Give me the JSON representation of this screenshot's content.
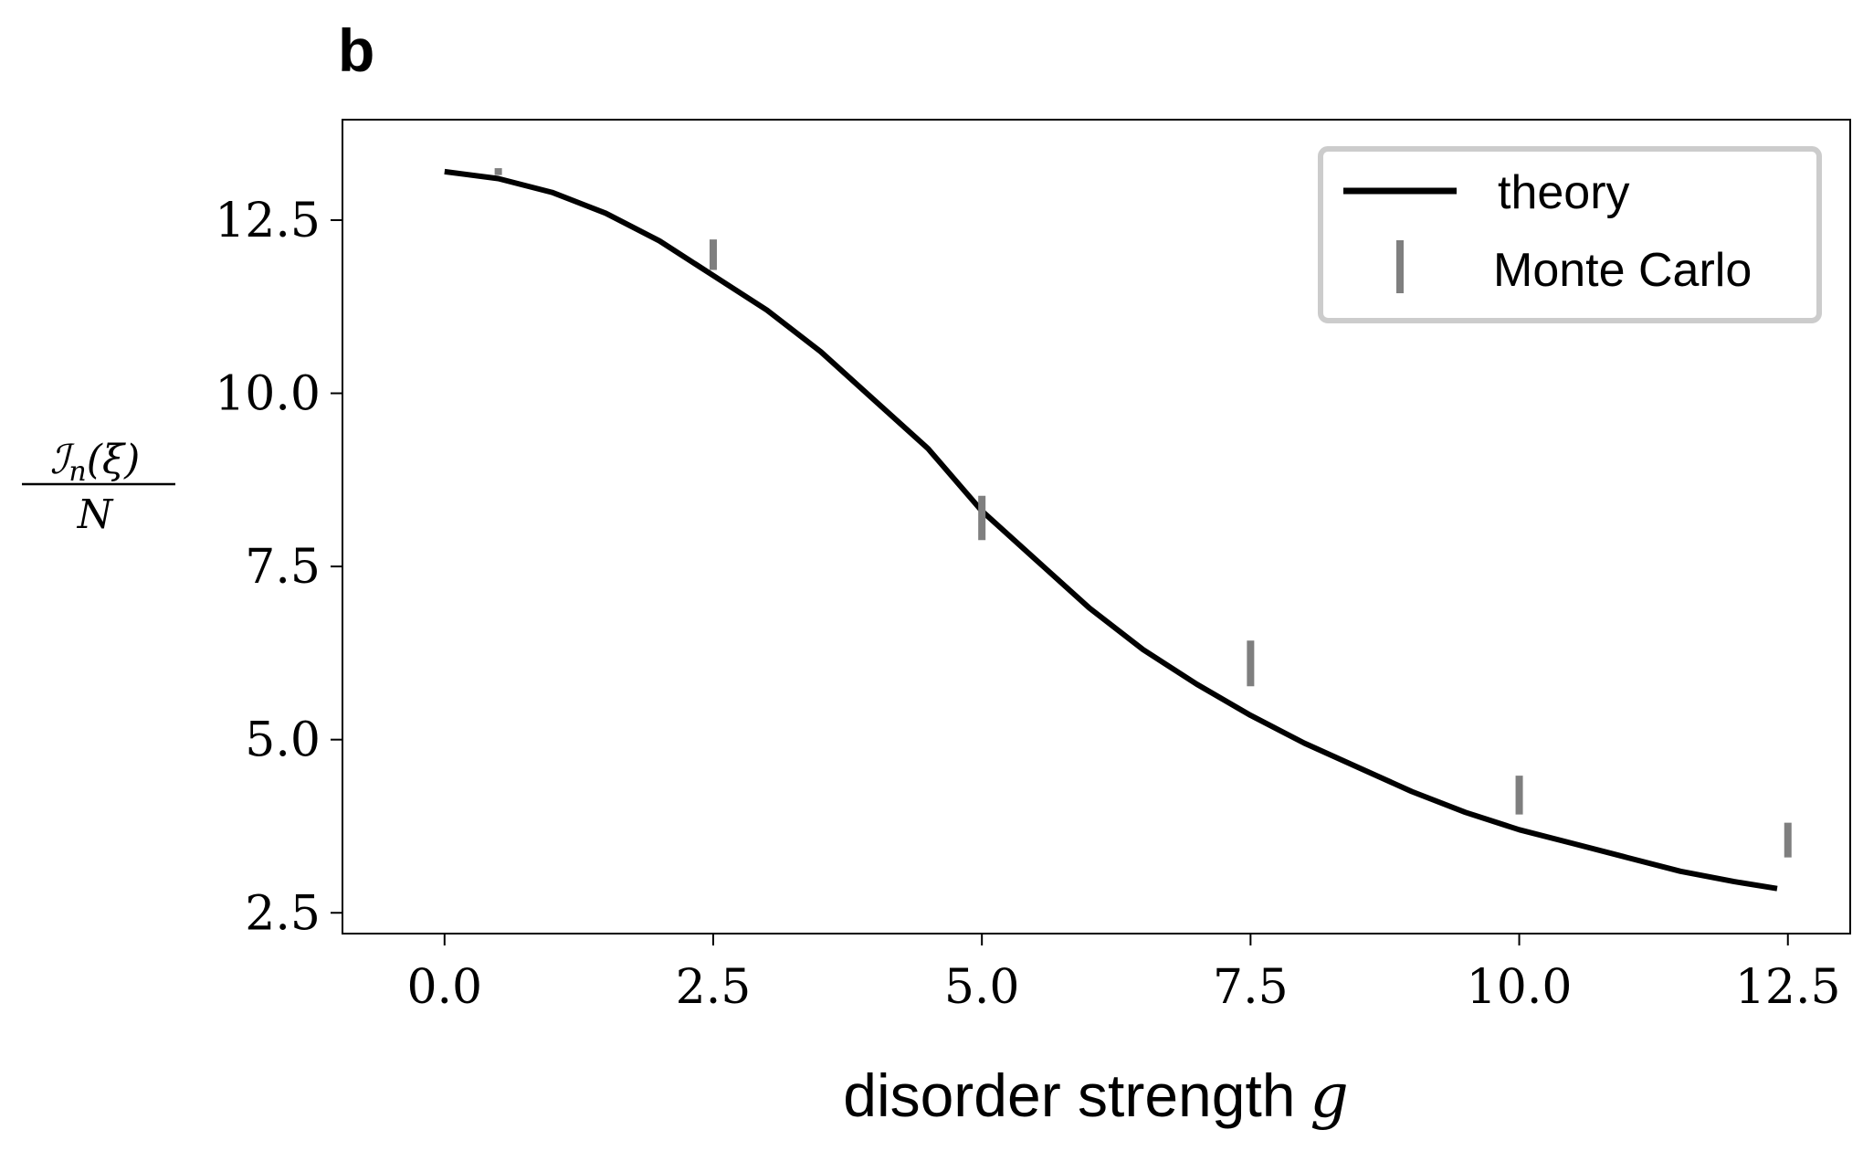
{
  "panel_label": "b",
  "chart_data": {
    "type": "line",
    "title": "",
    "xlabel": "disorder strength",
    "xlabel_symbol": "g",
    "ylabel_numerator": "ℐn(ξ)",
    "ylabel_numerator_main": "ℐ",
    "ylabel_numerator_sub": "n",
    "ylabel_numerator_arg": "(ξ)",
    "ylabel_denominator": "N",
    "xlim": [
      -0.95,
      13.08
    ],
    "ylim": [
      2.2,
      13.95
    ],
    "xticks": [
      0.0,
      2.5,
      5.0,
      7.5,
      10.0,
      12.5
    ],
    "xtick_labels": [
      "0.0",
      "2.5",
      "5.0",
      "7.5",
      "10.0",
      "12.5"
    ],
    "yticks": [
      2.5,
      5.0,
      7.5,
      10.0,
      12.5
    ],
    "ytick_labels": [
      "2.5",
      "5.0",
      "7.5",
      "10.0",
      "12.5"
    ],
    "grid": false,
    "legend_position": "top-right",
    "series": [
      {
        "name": "theory",
        "kind": "line",
        "color": "#000000",
        "x": [
          0.0,
          0.5,
          1.0,
          1.5,
          2.0,
          2.5,
          3.0,
          3.5,
          4.0,
          4.5,
          5.0,
          5.5,
          6.0,
          6.5,
          7.0,
          7.5,
          8.0,
          8.5,
          9.0,
          9.5,
          10.0,
          10.5,
          11.0,
          11.5,
          12.0,
          12.4
        ],
        "y": [
          13.2,
          13.1,
          12.9,
          12.6,
          12.2,
          11.7,
          11.2,
          10.6,
          9.9,
          9.2,
          8.3,
          7.6,
          6.9,
          6.3,
          5.8,
          5.35,
          4.95,
          4.6,
          4.25,
          3.95,
          3.7,
          3.5,
          3.3,
          3.1,
          2.95,
          2.85
        ]
      },
      {
        "name": "Monte Carlo",
        "kind": "errorbar",
        "color": "#7f7f7f",
        "x": [
          0.5,
          2.5,
          5.0,
          7.5,
          10.0,
          12.5
        ],
        "y": [
          13.2,
          12.0,
          8.2,
          6.1,
          4.2,
          3.55
        ],
        "error": [
          0.05,
          0.22,
          0.32,
          0.33,
          0.28,
          0.25
        ]
      }
    ]
  }
}
